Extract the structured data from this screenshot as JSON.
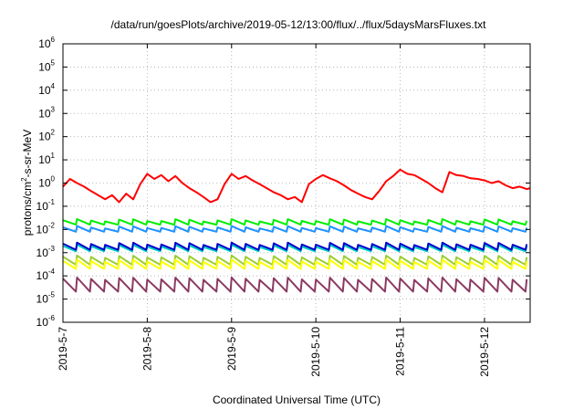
{
  "chart_data": {
    "type": "line",
    "title": "/data/run/goesPlots/archive/2019-05-12/13:00/flux/../flux/5daysMarsFluxes.txt",
    "xlabel": "Coordinated Universal Time (UTC)",
    "ylabel": {
      "base": "protons/cm",
      "exponent": "2",
      "suffix": "-s-sr-MeV"
    },
    "y_scale": "log",
    "ylim": [
      1e-06,
      1000000.0
    ],
    "y_ticks": [
      {
        "value": 1e-06,
        "base": "10",
        "exp": "-6"
      },
      {
        "value": 1e-05,
        "base": "10",
        "exp": "-5"
      },
      {
        "value": 0.0001,
        "base": "10",
        "exp": "-4"
      },
      {
        "value": 0.001,
        "base": "10",
        "exp": "-3"
      },
      {
        "value": 0.01,
        "base": "10",
        "exp": "-2"
      },
      {
        "value": 0.1,
        "base": "10",
        "exp": "-1"
      },
      {
        "value": 1,
        "base": "10",
        "exp": "0"
      },
      {
        "value": 10,
        "base": "10",
        "exp": "1"
      },
      {
        "value": 100,
        "base": "10",
        "exp": "2"
      },
      {
        "value": 1000,
        "base": "10",
        "exp": "3"
      },
      {
        "value": 10000,
        "base": "10",
        "exp": "4"
      },
      {
        "value": 100000,
        "base": "10",
        "exp": "5"
      },
      {
        "value": 1000000,
        "base": "10",
        "exp": "6"
      }
    ],
    "xlim": [
      "2019-05-07",
      "2019-05-12T13:00"
    ],
    "x_ticks": [
      "2019-5-7",
      "2019-5-8",
      "2019-5-9",
      "2019-5-10",
      "2019-5-11",
      "2019-5-12"
    ],
    "x_tick_dates": [
      "2019-05-07",
      "2019-05-08",
      "2019-05-09",
      "2019-05-10",
      "2019-05-11",
      "2019-05-12"
    ],
    "grid": true,
    "legend": "none",
    "series": [
      {
        "color": "#ff0000",
        "x": [
          "2019-05-07T00:00",
          "2019-05-07T02:00",
          "2019-05-07T04:00",
          "2019-05-07T06:00",
          "2019-05-07T08:00",
          "2019-05-07T10:00",
          "2019-05-07T12:00",
          "2019-05-07T14:00",
          "2019-05-07T16:00",
          "2019-05-07T18:00",
          "2019-05-07T20:00",
          "2019-05-07T22:00",
          "2019-05-08T00:00",
          "2019-05-08T02:00",
          "2019-05-08T04:00",
          "2019-05-08T06:00",
          "2019-05-08T08:00",
          "2019-05-08T10:00",
          "2019-05-08T12:00",
          "2019-05-08T14:00",
          "2019-05-08T16:00",
          "2019-05-08T18:00",
          "2019-05-08T20:00",
          "2019-05-08T22:00",
          "2019-05-09T00:00",
          "2019-05-09T02:00",
          "2019-05-09T04:00",
          "2019-05-09T06:00",
          "2019-05-09T08:00",
          "2019-05-09T10:00",
          "2019-05-09T12:00",
          "2019-05-09T14:00",
          "2019-05-09T16:00",
          "2019-05-09T18:00",
          "2019-05-09T20:00",
          "2019-05-09T22:00",
          "2019-05-10T00:00",
          "2019-05-10T02:00",
          "2019-05-10T04:00",
          "2019-05-10T06:00",
          "2019-05-10T08:00",
          "2019-05-10T10:00",
          "2019-05-10T12:00",
          "2019-05-10T14:00",
          "2019-05-10T16:00",
          "2019-05-10T18:00",
          "2019-05-10T20:00",
          "2019-05-10T22:00",
          "2019-05-11T00:00",
          "2019-05-11T02:00",
          "2019-05-11T04:00",
          "2019-05-11T06:00",
          "2019-05-11T08:00",
          "2019-05-11T10:00",
          "2019-05-11T12:00",
          "2019-05-11T14:00",
          "2019-05-11T16:00",
          "2019-05-11T18:00",
          "2019-05-11T20:00",
          "2019-05-11T22:00",
          "2019-05-12T00:00",
          "2019-05-12T02:00",
          "2019-05-12T04:00",
          "2019-05-12T06:00",
          "2019-05-12T08:00",
          "2019-05-12T10:00",
          "2019-05-12T12:00",
          "2019-05-12T13:00"
        ],
        "values": [
          0.7,
          1.5,
          1.0,
          0.7,
          0.45,
          0.3,
          0.2,
          0.3,
          0.15,
          0.35,
          0.2,
          0.9,
          2.5,
          1.5,
          2.2,
          1.2,
          2.0,
          1.0,
          0.6,
          0.4,
          0.25,
          0.15,
          0.2,
          0.9,
          2.5,
          1.5,
          2.0,
          1.3,
          0.9,
          0.6,
          0.4,
          0.3,
          0.2,
          0.25,
          0.15,
          0.9,
          1.5,
          2.2,
          1.6,
          1.2,
          0.8,
          0.5,
          0.35,
          0.25,
          0.2,
          0.45,
          1.2,
          2.0,
          3.8,
          2.5,
          2.2,
          1.5,
          1.0,
          0.6,
          0.4,
          3.0,
          2.2,
          2.0,
          1.6,
          1.5,
          1.3,
          1.0,
          1.2,
          0.8,
          0.6,
          0.7,
          0.55,
          0.6
        ]
      },
      {
        "color": "#00ee00",
        "base": 0.02,
        "amp": 1.25,
        "period_hours": 4
      },
      {
        "color": "#1e90ff",
        "base": 0.01,
        "amp": 1.25,
        "period_hours": 4
      },
      {
        "color": "#00d0c0",
        "base": 0.0015,
        "amp": 1.3,
        "period_hours": 4
      },
      {
        "color": "#0000cc",
        "base": 0.0018,
        "amp": 1.35,
        "period_hours": 4
      },
      {
        "color": "#9acd32",
        "base": 0.00045,
        "amp": 1.5,
        "period_hours": 4
      },
      {
        "color": "#ffff00",
        "base": 0.0003,
        "amp": 1.5,
        "period_hours": 4
      },
      {
        "color": "#8b3a62",
        "base": 4e-05,
        "amp": 1.9,
        "period_hours": 4
      }
    ]
  }
}
